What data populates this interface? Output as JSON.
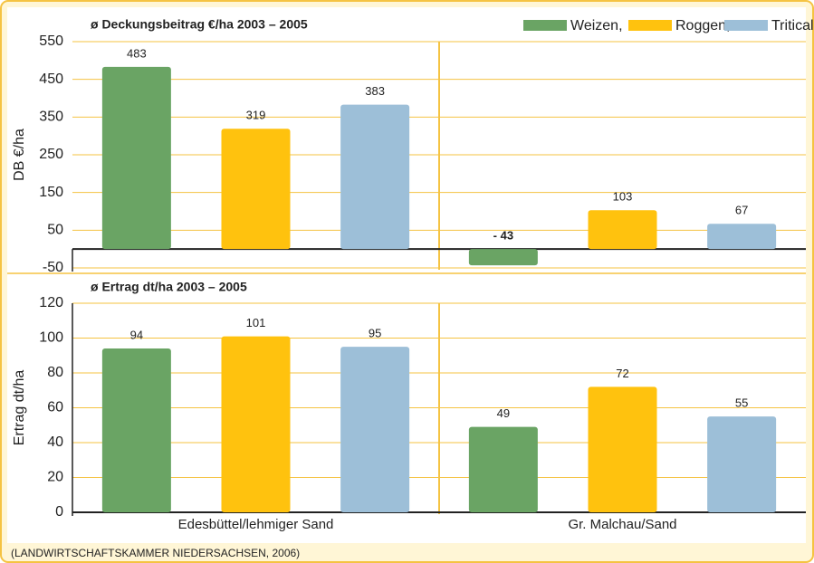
{
  "legend_series_note_free": null,
  "chart_data": [
    {
      "type": "bar",
      "title": "ø Deckungsbeitrag €/ha 2003 – 2005",
      "ylabel": "DB €/ha",
      "series": [
        {
          "name": "Weizen,",
          "color": "#6aa464",
          "values": [
            483,
            -43
          ],
          "value_labels": [
            "483",
            "- 43"
          ]
        },
        {
          "name": "Roggen,",
          "color": "#ffc20e",
          "values": [
            319,
            103
          ]
        },
        {
          "name": "Triticale",
          "color": "#9dbfd8",
          "values": [
            383,
            67
          ]
        }
      ],
      "ylim": [
        -50,
        550
      ],
      "yticks": [
        -50,
        50,
        150,
        250,
        350,
        450,
        550
      ],
      "grid": true
    },
    {
      "type": "bar",
      "title": "ø Ertrag dt/ha 2003 – 2005",
      "ylabel": "Ertrag dt/ha",
      "categories": [
        "Edesbüttel/lehmiger Sand",
        "Gr. Malchau/Sand"
      ],
      "series": [
        {
          "color": "#6aa464",
          "values": [
            94,
            49
          ]
        },
        {
          "color": "#ffc20e",
          "values": [
            101,
            72
          ]
        },
        {
          "color": "#9dbfd8",
          "values": [
            95,
            55
          ]
        }
      ],
      "ylim": [
        0,
        120
      ],
      "yticks": [
        0,
        20,
        40,
        60,
        80,
        100,
        120
      ],
      "grid": true
    }
  ],
  "source": "(LANDWIRTSCHAFTSKAMMER NIEDERSACHSEN, 2006)"
}
